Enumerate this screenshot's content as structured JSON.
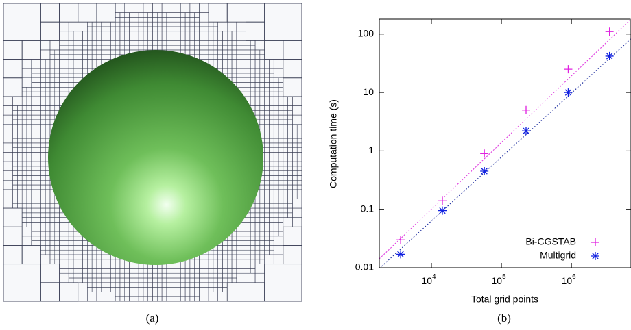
{
  "panel_a": {
    "caption": "(a)"
  },
  "chart_data": {
    "type": "scatter",
    "caption": "(b)",
    "x_label": "Total grid points",
    "y_label": "Computation time (s)",
    "log_x": true,
    "log_y": true,
    "legend": "lower right",
    "xlim": [
      1800,
      7100000
    ],
    "ylim": [
      0.01,
      180
    ],
    "xticks": [
      {
        "value": 10000,
        "label": "10",
        "exponent": "4"
      },
      {
        "value": 100000,
        "label": "10",
        "exponent": "5"
      },
      {
        "value": 1000000,
        "label": "10",
        "exponent": "6"
      }
    ],
    "yticks": [
      0.01,
      0.1,
      1,
      10,
      100
    ],
    "series": [
      {
        "name": "Bi-CGSTAB",
        "color": "#e020e0",
        "marker": "plus",
        "x": [
          3630,
          14350,
          57000,
          225000,
          900000,
          3500000
        ],
        "values": [
          0.03,
          0.14,
          0.9,
          5,
          25,
          110
        ],
        "fit": {
          "color": "#e040e0",
          "x": [
            1800,
            7100000
          ],
          "values": [
            0.0142,
            180
          ]
        }
      },
      {
        "name": "Multigrid",
        "color": "#1020e0",
        "marker": "asterisk",
        "x": [
          3630,
          14350,
          57000,
          225000,
          900000,
          3500000
        ],
        "values": [
          0.017,
          0.095,
          0.45,
          2.2,
          10,
          42
        ],
        "fit": {
          "color": "#2030a0",
          "x": [
            1800,
            7100000
          ],
          "values": [
            0.0097,
            83
          ]
        }
      }
    ]
  }
}
